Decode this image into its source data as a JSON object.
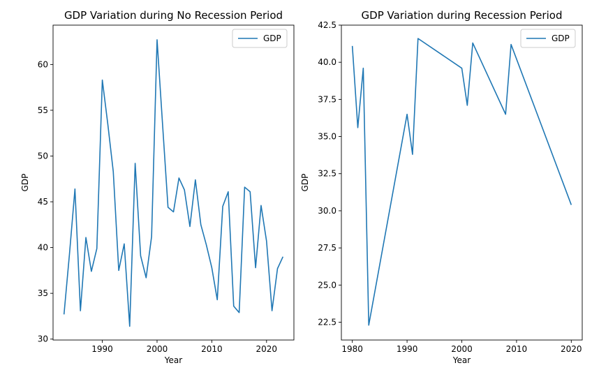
{
  "chart_data": [
    {
      "type": "line",
      "title": "GDP Variation during No Recession Period",
      "xlabel": "Year",
      "ylabel": "GDP",
      "xlim": [
        1981,
        2025
      ],
      "ylim": [
        29.9,
        64.3
      ],
      "xticks": [
        1990,
        2000,
        2010,
        2020
      ],
      "yticks": [
        30,
        35,
        40,
        45,
        50,
        55,
        60
      ],
      "grid": false,
      "legend_position": "top-right",
      "color": "#1f77b4",
      "series": [
        {
          "name": "GDP",
          "x": [
            1983,
            1984,
            1985,
            1986,
            1987,
            1988,
            1989,
            1990,
            1991,
            1992,
            1993,
            1994,
            1995,
            1996,
            1997,
            1998,
            1999,
            2000,
            2001,
            2002,
            2003,
            2004,
            2005,
            2006,
            2007,
            2008,
            2009,
            2010,
            2011,
            2012,
            2013,
            2014,
            2015,
            2016,
            2017,
            2018,
            2019,
            2020,
            2021,
            2022,
            2023
          ],
          "y": [
            32.7,
            39.3,
            46.4,
            33.1,
            41.1,
            37.4,
            39.9,
            58.3,
            53.5,
            48.3,
            37.5,
            40.4,
            31.4,
            49.2,
            39.1,
            36.7,
            41.2,
            62.7,
            53.5,
            44.4,
            43.9,
            47.6,
            46.3,
            42.3,
            47.4,
            42.5,
            40.3,
            37.8,
            34.3,
            44.5,
            46.1,
            33.6,
            32.9,
            46.6,
            46.1,
            37.8,
            44.6,
            40.7,
            33.1,
            37.7,
            39.0
          ]
        }
      ]
    },
    {
      "type": "line",
      "title": "GDP Variation during Recession Period",
      "xlabel": "Year",
      "ylabel": "GDP",
      "xlim": [
        1978,
        2022
      ],
      "ylim": [
        21.3,
        42.5
      ],
      "xticks": [
        1980,
        1990,
        2000,
        2010,
        2020
      ],
      "yticks": [
        "22.5",
        "25.0",
        "27.5",
        "30.0",
        "32.5",
        "35.0",
        "37.5",
        "40.0",
        "42.5"
      ],
      "grid": false,
      "legend_position": "top-right",
      "color": "#1f77b4",
      "series": [
        {
          "name": "GDP",
          "x": [
            1980,
            1981,
            1982,
            1983,
            1990,
            1991,
            1992,
            2000,
            2001,
            2002,
            2008,
            2009,
            2020
          ],
          "y": [
            41.1,
            35.6,
            39.6,
            22.3,
            36.5,
            33.8,
            41.6,
            39.6,
            37.1,
            41.3,
            36.5,
            41.2,
            30.4
          ]
        }
      ]
    }
  ]
}
